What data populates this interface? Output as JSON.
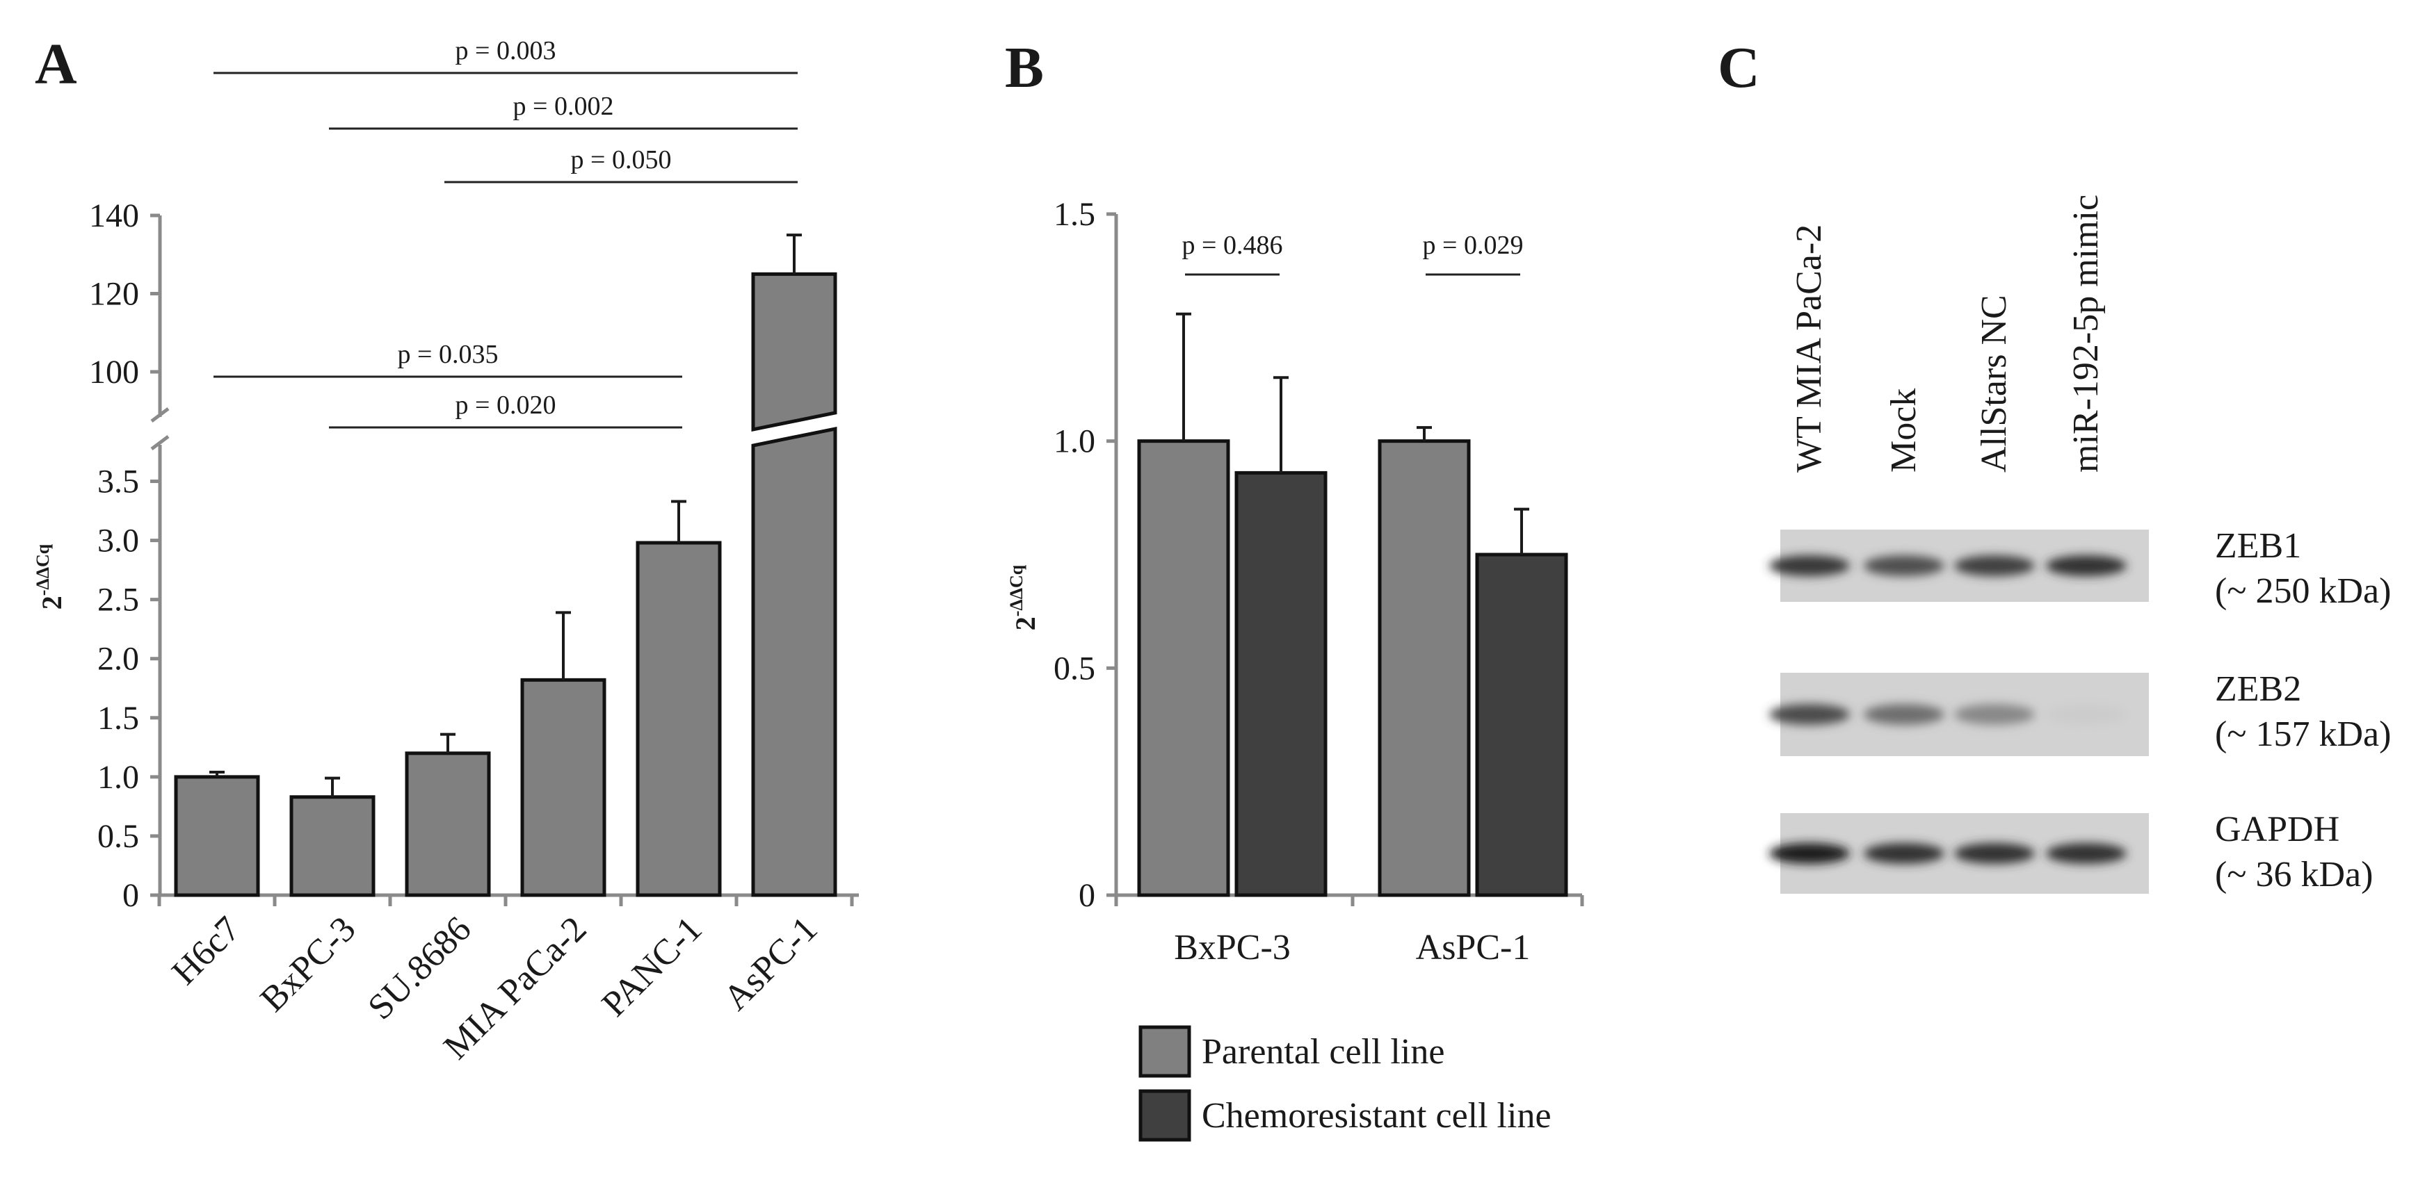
{
  "panels": {
    "a": {
      "letter": "A",
      "chart_data": {
        "type": "bar",
        "ylabel_base": "2",
        "ylabel_exp": "-ΔΔCq",
        "categories": [
          "H6c7",
          "BxPC-3",
          "SU.8686",
          "MIA PaCa-2",
          "PANC-1",
          "AsPC-1"
        ],
        "values": [
          1.0,
          0.83,
          1.2,
          1.82,
          2.98,
          125.0
        ],
        "errors": [
          0.04,
          0.16,
          0.16,
          0.57,
          0.35,
          10.0
        ],
        "y_lower_ticks": [
          "0",
          "0.5",
          "1.0",
          "1.5",
          "2.0",
          "2.5",
          "3.0",
          "3.5"
        ],
        "y_upper_ticks": [
          "100",
          "120",
          "140"
        ],
        "ylim_lower": [
          0,
          3.75
        ],
        "ylim_upper": [
          92,
          140
        ],
        "bar_color": "#808080",
        "comparisons": [
          {
            "label": "p = 0.003",
            "from": 0,
            "to": 5
          },
          {
            "label": "p = 0.002",
            "from": 1,
            "to": 5
          },
          {
            "label": "p = 0.050",
            "from": 2,
            "to": 5
          },
          {
            "label": "p = 0.035",
            "from": 0,
            "to": 4
          },
          {
            "label": "p = 0.020",
            "from": 1,
            "to": 4
          }
        ]
      }
    },
    "b": {
      "letter": "B",
      "chart_data": {
        "type": "bar",
        "ylabel_base": "2",
        "ylabel_exp": "-ΔΔCq",
        "categories": [
          "BxPC-3",
          "AsPC-1"
        ],
        "ylim": [
          0,
          1.5
        ],
        "y_ticks": [
          "0",
          "0.5",
          "1.0",
          "1.5"
        ],
        "series": [
          {
            "name": "Parental cell line",
            "values": [
              1.0,
              1.0
            ],
            "errors": [
              0.28,
              0.03
            ],
            "color": "#808080"
          },
          {
            "name": "Chemoresistant cell line",
            "values": [
              0.93,
              0.75
            ],
            "errors": [
              0.21,
              0.1
            ],
            "color": "#404040"
          }
        ],
        "comparisons": [
          {
            "label": "p = 0.486",
            "group": 0
          },
          {
            "label": "p = 0.029",
            "group": 1
          }
        ]
      }
    },
    "c": {
      "letter": "C",
      "lanes": [
        "WT MIA PaCa-2",
        "Mock",
        "AllStars NC",
        "miR-192-5p mimic"
      ],
      "blots": [
        {
          "protein": "ZEB1",
          "size": "(~ 250 kDa)",
          "intensity": [
            0.82,
            0.7,
            0.78,
            0.86
          ]
        },
        {
          "protein": "ZEB2",
          "size": "(~ 157 kDa)",
          "intensity": [
            0.72,
            0.55,
            0.42,
            0.08
          ]
        },
        {
          "protein": "GAPDH",
          "size": "(~ 36 kDa)",
          "intensity": [
            0.95,
            0.85,
            0.85,
            0.85
          ]
        }
      ]
    }
  }
}
